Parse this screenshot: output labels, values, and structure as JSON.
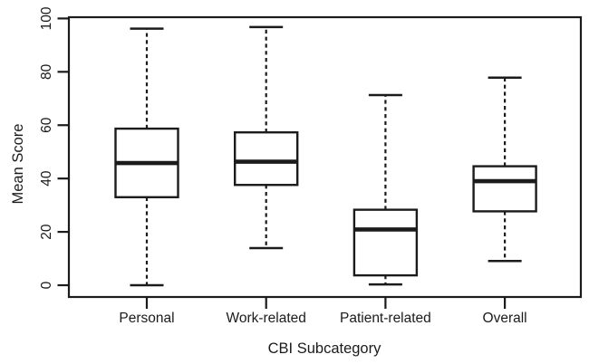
{
  "chart_data": {
    "type": "box",
    "title": "",
    "xlabel": "CBI Subcategory",
    "ylabel": "Mean Score",
    "categories": [
      "Personal",
      "Work-related",
      "Patient-related",
      "Overall"
    ],
    "yticks": [
      0,
      20,
      40,
      60,
      80,
      100
    ],
    "ylim": [
      -4.5,
      100.5
    ],
    "grid": false,
    "legend": null,
    "orientation": "vertical",
    "series": [
      {
        "name": "Personal",
        "whisker_low": 0.0,
        "q1": 33.0,
        "median": 45.8,
        "q3": 58.7,
        "whisker_high": 96.2
      },
      {
        "name": "Work-related",
        "whisker_low": 13.9,
        "q1": 37.6,
        "median": 46.3,
        "q3": 57.3,
        "whisker_high": 96.8
      },
      {
        "name": "Patient-related",
        "whisker_low": 0.3,
        "q1": 3.7,
        "median": 20.9,
        "q3": 28.3,
        "whisker_high": 71.3
      },
      {
        "name": "Overall",
        "whisker_low": 9.1,
        "q1": 27.7,
        "median": 39.0,
        "q3": 44.6,
        "whisker_high": 77.8
      }
    ],
    "colors": {
      "line": "#1b1b1b",
      "box_fill": "#ffffff",
      "background": "#ffffff"
    }
  }
}
